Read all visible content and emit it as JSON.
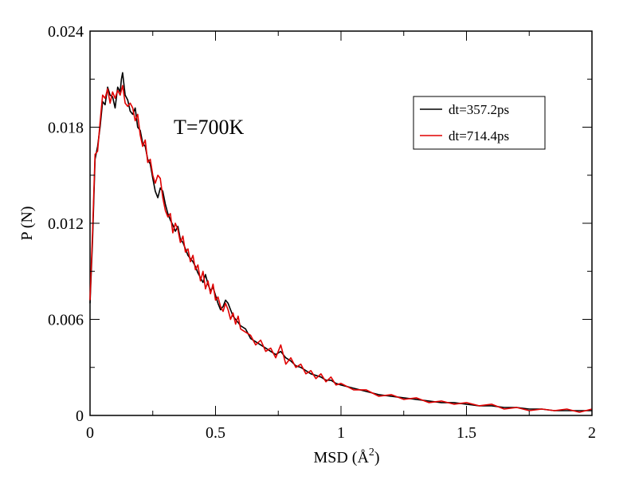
{
  "chart_data": {
    "type": "line",
    "title": "",
    "xlabel": "MSD (Å",
    "xlabel_sup": "2",
    "xlabel_close": ")",
    "ylabel": "P (N)",
    "xlim": [
      0,
      2
    ],
    "ylim": [
      0,
      0.024
    ],
    "x_ticks": [
      "0",
      "0.5",
      "1",
      "1.5",
      "2"
    ],
    "y_ticks": [
      "0",
      "0.006",
      "0.012",
      "0.018",
      "0.024"
    ],
    "annotation": "T=700K",
    "grid": false,
    "legend_position": "top-right",
    "series": [
      {
        "name": "dt=357.2ps",
        "color": "#000000",
        "points": [
          [
            0.0,
            0.007
          ],
          [
            0.01,
            0.011
          ],
          [
            0.02,
            0.016
          ],
          [
            0.03,
            0.0168
          ],
          [
            0.04,
            0.018
          ],
          [
            0.05,
            0.0196
          ],
          [
            0.06,
            0.0194
          ],
          [
            0.07,
            0.0205
          ],
          [
            0.08,
            0.02
          ],
          [
            0.09,
            0.0199
          ],
          [
            0.1,
            0.0192
          ],
          [
            0.11,
            0.0205
          ],
          [
            0.12,
            0.0202
          ],
          [
            0.125,
            0.021
          ],
          [
            0.13,
            0.0214
          ],
          [
            0.14,
            0.02
          ],
          [
            0.15,
            0.0197
          ],
          [
            0.16,
            0.019
          ],
          [
            0.17,
            0.0188
          ],
          [
            0.18,
            0.0192
          ],
          [
            0.19,
            0.018
          ],
          [
            0.2,
            0.0178
          ],
          [
            0.21,
            0.017
          ],
          [
            0.22,
            0.0168
          ],
          [
            0.23,
            0.016
          ],
          [
            0.24,
            0.0157
          ],
          [
            0.25,
            0.0148
          ],
          [
            0.26,
            0.014
          ],
          [
            0.27,
            0.0136
          ],
          [
            0.28,
            0.0142
          ],
          [
            0.29,
            0.014
          ],
          [
            0.3,
            0.0132
          ],
          [
            0.31,
            0.0126
          ],
          [
            0.32,
            0.0122
          ],
          [
            0.33,
            0.0119
          ],
          [
            0.34,
            0.0115
          ],
          [
            0.35,
            0.0118
          ],
          [
            0.36,
            0.011
          ],
          [
            0.37,
            0.0108
          ],
          [
            0.38,
            0.0104
          ],
          [
            0.39,
            0.01
          ],
          [
            0.4,
            0.0098
          ],
          [
            0.41,
            0.0096
          ],
          [
            0.42,
            0.0093
          ],
          [
            0.43,
            0.0089
          ],
          [
            0.44,
            0.0086
          ],
          [
            0.45,
            0.0083
          ],
          [
            0.46,
            0.0088
          ],
          [
            0.47,
            0.0082
          ],
          [
            0.48,
            0.0078
          ],
          [
            0.49,
            0.008
          ],
          [
            0.5,
            0.0075
          ],
          [
            0.51,
            0.007
          ],
          [
            0.52,
            0.0066
          ],
          [
            0.53,
            0.0068
          ],
          [
            0.54,
            0.0072
          ],
          [
            0.55,
            0.007
          ],
          [
            0.56,
            0.0066
          ],
          [
            0.57,
            0.0062
          ],
          [
            0.58,
            0.006
          ],
          [
            0.59,
            0.0058
          ],
          [
            0.6,
            0.0056
          ],
          [
            0.62,
            0.0054
          ],
          [
            0.64,
            0.0048
          ],
          [
            0.66,
            0.0046
          ],
          [
            0.68,
            0.0044
          ],
          [
            0.7,
            0.0042
          ],
          [
            0.72,
            0.004
          ],
          [
            0.74,
            0.0038
          ],
          [
            0.76,
            0.004
          ],
          [
            0.78,
            0.0036
          ],
          [
            0.8,
            0.0034
          ],
          [
            0.82,
            0.0031
          ],
          [
            0.84,
            0.003
          ],
          [
            0.86,
            0.0028
          ],
          [
            0.88,
            0.0026
          ],
          [
            0.9,
            0.0025
          ],
          [
            0.92,
            0.0024
          ],
          [
            0.94,
            0.0022
          ],
          [
            0.96,
            0.0022
          ],
          [
            0.98,
            0.002
          ],
          [
            1.0,
            0.0019
          ],
          [
            1.05,
            0.0017
          ],
          [
            1.1,
            0.0015
          ],
          [
            1.15,
            0.0013
          ],
          [
            1.2,
            0.0012
          ],
          [
            1.25,
            0.0011
          ],
          [
            1.3,
            0.001
          ],
          [
            1.35,
            0.0009
          ],
          [
            1.4,
            0.0008
          ],
          [
            1.45,
            0.0008
          ],
          [
            1.5,
            0.0007
          ],
          [
            1.55,
            0.0006
          ],
          [
            1.6,
            0.0006
          ],
          [
            1.65,
            0.0005
          ],
          [
            1.7,
            0.0005
          ],
          [
            1.75,
            0.0004
          ],
          [
            1.8,
            0.0004
          ],
          [
            1.85,
            0.0003
          ],
          [
            1.9,
            0.0003
          ],
          [
            1.95,
            0.0003
          ],
          [
            2.0,
            0.0003
          ]
        ]
      },
      {
        "name": "dt=714.4ps",
        "color": "#e00000",
        "points": [
          [
            0.0,
            0.0072
          ],
          [
            0.01,
            0.0115
          ],
          [
            0.02,
            0.0163
          ],
          [
            0.03,
            0.0165
          ],
          [
            0.04,
            0.0183
          ],
          [
            0.05,
            0.02
          ],
          [
            0.06,
            0.0198
          ],
          [
            0.07,
            0.0204
          ],
          [
            0.08,
            0.0195
          ],
          [
            0.09,
            0.0202
          ],
          [
            0.1,
            0.0198
          ],
          [
            0.11,
            0.0203
          ],
          [
            0.12,
            0.02
          ],
          [
            0.13,
            0.0206
          ],
          [
            0.14,
            0.0195
          ],
          [
            0.15,
            0.0193
          ],
          [
            0.16,
            0.0195
          ],
          [
            0.17,
            0.0192
          ],
          [
            0.18,
            0.0184
          ],
          [
            0.19,
            0.0188
          ],
          [
            0.2,
            0.0175
          ],
          [
            0.21,
            0.0168
          ],
          [
            0.22,
            0.0172
          ],
          [
            0.23,
            0.0158
          ],
          [
            0.24,
            0.016
          ],
          [
            0.25,
            0.015
          ],
          [
            0.26,
            0.0145
          ],
          [
            0.27,
            0.015
          ],
          [
            0.28,
            0.0148
          ],
          [
            0.29,
            0.0136
          ],
          [
            0.3,
            0.0128
          ],
          [
            0.31,
            0.0124
          ],
          [
            0.32,
            0.0126
          ],
          [
            0.33,
            0.0114
          ],
          [
            0.34,
            0.012
          ],
          [
            0.35,
            0.0116
          ],
          [
            0.36,
            0.0108
          ],
          [
            0.37,
            0.0112
          ],
          [
            0.38,
            0.0102
          ],
          [
            0.39,
            0.0104
          ],
          [
            0.4,
            0.0096
          ],
          [
            0.41,
            0.01
          ],
          [
            0.42,
            0.0091
          ],
          [
            0.43,
            0.0094
          ],
          [
            0.44,
            0.0084
          ],
          [
            0.45,
            0.009
          ],
          [
            0.46,
            0.0079
          ],
          [
            0.47,
            0.0084
          ],
          [
            0.48,
            0.0076
          ],
          [
            0.49,
            0.0082
          ],
          [
            0.5,
            0.0072
          ],
          [
            0.51,
            0.0074
          ],
          [
            0.52,
            0.0068
          ],
          [
            0.53,
            0.0065
          ],
          [
            0.54,
            0.007
          ],
          [
            0.55,
            0.0066
          ],
          [
            0.56,
            0.006
          ],
          [
            0.57,
            0.0064
          ],
          [
            0.58,
            0.0057
          ],
          [
            0.59,
            0.0062
          ],
          [
            0.6,
            0.0054
          ],
          [
            0.62,
            0.0052
          ],
          [
            0.64,
            0.005
          ],
          [
            0.66,
            0.0044
          ],
          [
            0.68,
            0.0047
          ],
          [
            0.7,
            0.004
          ],
          [
            0.72,
            0.0042
          ],
          [
            0.74,
            0.0036
          ],
          [
            0.76,
            0.0044
          ],
          [
            0.78,
            0.0032
          ],
          [
            0.8,
            0.0036
          ],
          [
            0.82,
            0.003
          ],
          [
            0.84,
            0.0032
          ],
          [
            0.86,
            0.0026
          ],
          [
            0.88,
            0.0028
          ],
          [
            0.9,
            0.0023
          ],
          [
            0.92,
            0.0026
          ],
          [
            0.94,
            0.0021
          ],
          [
            0.96,
            0.0024
          ],
          [
            0.98,
            0.0019
          ],
          [
            1.0,
            0.002
          ],
          [
            1.05,
            0.0016
          ],
          [
            1.1,
            0.0016
          ],
          [
            1.15,
            0.0012
          ],
          [
            1.2,
            0.0013
          ],
          [
            1.25,
            0.001
          ],
          [
            1.3,
            0.0011
          ],
          [
            1.35,
            0.0008
          ],
          [
            1.4,
            0.0009
          ],
          [
            1.45,
            0.0007
          ],
          [
            1.5,
            0.0008
          ],
          [
            1.55,
            0.0006
          ],
          [
            1.6,
            0.0007
          ],
          [
            1.65,
            0.0004
          ],
          [
            1.7,
            0.0005
          ],
          [
            1.75,
            0.0003
          ],
          [
            1.8,
            0.0004
          ],
          [
            1.85,
            0.0003
          ],
          [
            1.9,
            0.0004
          ],
          [
            1.95,
            0.0002
          ],
          [
            2.0,
            0.0004
          ]
        ]
      }
    ]
  }
}
